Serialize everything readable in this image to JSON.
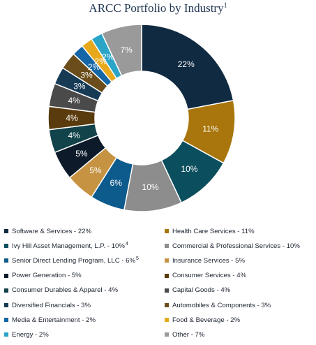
{
  "title": {
    "text": "ARCC Portfolio by Industry",
    "sup": "1"
  },
  "colors": {
    "navy": "#0f2a41",
    "gold": "#a8760c",
    "teal": "#0b4f5e",
    "gray": "#8d8d8d",
    "blue": "#0d5a8c",
    "tan": "#c69343",
    "black_navy": "#0c1a2a",
    "brown": "#5a3b0d",
    "dark_teal": "#12424a",
    "charcoal": "#4a4a4a",
    "dark_blue": "#173a55",
    "olive_brown": "#6b4d1b",
    "media_blue": "#1466a6",
    "yellow": "#e7a91b",
    "cyan": "#2aa5c7",
    "light_gray": "#9a9a9a"
  },
  "chart_data": {
    "type": "pie",
    "donut": true,
    "title": "ARCC Portfolio by Industry",
    "slices": [
      {
        "name": "Software & Services",
        "value": 22,
        "label": "22%",
        "color": "#0f2a41",
        "legend": "Software & Services - 22%",
        "sup": ""
      },
      {
        "name": "Health Care Services",
        "value": 11,
        "label": "11%",
        "color": "#a8760c",
        "legend": "Health Care Services - 11%",
        "sup": ""
      },
      {
        "name": "Ivy Hill Asset Management, L.P.",
        "value": 10,
        "label": "10%",
        "color": "#0b4f5e",
        "legend": "Ivy Hill Asset Management, L.P. - 10%",
        "sup": "4"
      },
      {
        "name": "Commercial & Professional Services",
        "value": 10,
        "label": "10%",
        "color": "#8d8d8d",
        "legend": "Commercial & Professional Services - 10%",
        "sup": ""
      },
      {
        "name": "Senior Direct Lending Program, LLC",
        "value": 6,
        "label": "6%",
        "color": "#0d5a8c",
        "legend": "Senior Direct Lending Program, LLC - 6%",
        "sup": "5"
      },
      {
        "name": "Insurance Services",
        "value": 5,
        "label": "5%",
        "color": "#c69343",
        "legend": "Insurance Services - 5%",
        "sup": ""
      },
      {
        "name": "Power Generation",
        "value": 5,
        "label": "5%",
        "color": "#0c1a2a",
        "legend": "Power Generation - 5%",
        "sup": ""
      },
      {
        "name": "Consumer Services",
        "value": 4,
        "label": "4%",
        "color": "#5a3b0d",
        "legend": "Consumer Services - 4%",
        "sup": ""
      },
      {
        "name": "Consumer Durables & Apparel",
        "value": 4,
        "label": "4%",
        "color": "#12424a",
        "legend": "Consumer Durables & Apparel - 4%",
        "sup": ""
      },
      {
        "name": "Capital Goods",
        "value": 4,
        "label": "4%",
        "color": "#4a4a4a",
        "legend": "Capital Goods - 4%",
        "sup": ""
      },
      {
        "name": "Diversified Financials",
        "value": 3,
        "label": "3%",
        "color": "#173a55",
        "legend": "Diversified Financials - 3%",
        "sup": ""
      },
      {
        "name": "Automobiles & Components",
        "value": 3,
        "label": "3%",
        "color": "#6b4d1b",
        "legend": "Automobiles & Components - 3%",
        "sup": ""
      },
      {
        "name": "Media & Entertainment",
        "value": 2,
        "label": "2%",
        "color": "#1466a6",
        "legend": "Media & Entertainment - 2%",
        "sup": ""
      },
      {
        "name": "Food & Beverage",
        "value": 2,
        "label": "2%",
        "color": "#e7a91b",
        "legend": "Food & Beverage - 2%",
        "sup": ""
      },
      {
        "name": "Energy",
        "value": 2,
        "label": "2%",
        "color": "#2aa5c7",
        "legend": "Energy - 2%",
        "sup": ""
      },
      {
        "name": "Other",
        "value": 7,
        "label": "7%",
        "color": "#9a9a9a",
        "legend": "Other - 7%",
        "sup": ""
      }
    ],
    "pie_order": [
      0,
      1,
      2,
      3,
      4,
      5,
      6,
      8,
      7,
      9,
      10,
      11,
      12,
      13,
      14,
      15
    ],
    "legend_layout": "two-column grid below chart"
  }
}
